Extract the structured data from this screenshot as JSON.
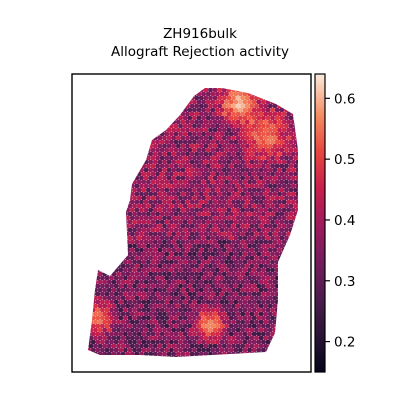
{
  "chart_data": {
    "type": "heatmap",
    "title": "ZH916bulk",
    "subtitle": "Allograft Rejection activity",
    "xlabel": "",
    "ylabel": "",
    "plot": "spatial spot map (hexagonal Visium spots) colored by activity score",
    "axes_frame": true,
    "axis_ticks": false,
    "colormap": "rocket",
    "colorbar": {
      "vmin": 0.15,
      "vmax": 0.64,
      "ticks": [
        0.2,
        0.3,
        0.4,
        0.5,
        0.6
      ],
      "tick_labels": [
        "0.2",
        "0.3",
        "0.4",
        "0.5",
        "0.6"
      ],
      "placement": "right"
    },
    "hotspots": [
      {
        "region": "top-right (upper lobe)",
        "value": 0.6
      },
      {
        "region": "upper-right lobe edge",
        "value": 0.55
      },
      {
        "region": "lower-left tip",
        "value": 0.55
      },
      {
        "region": "lower-center",
        "value": 0.58
      }
    ],
    "background_level": 0.33
  }
}
